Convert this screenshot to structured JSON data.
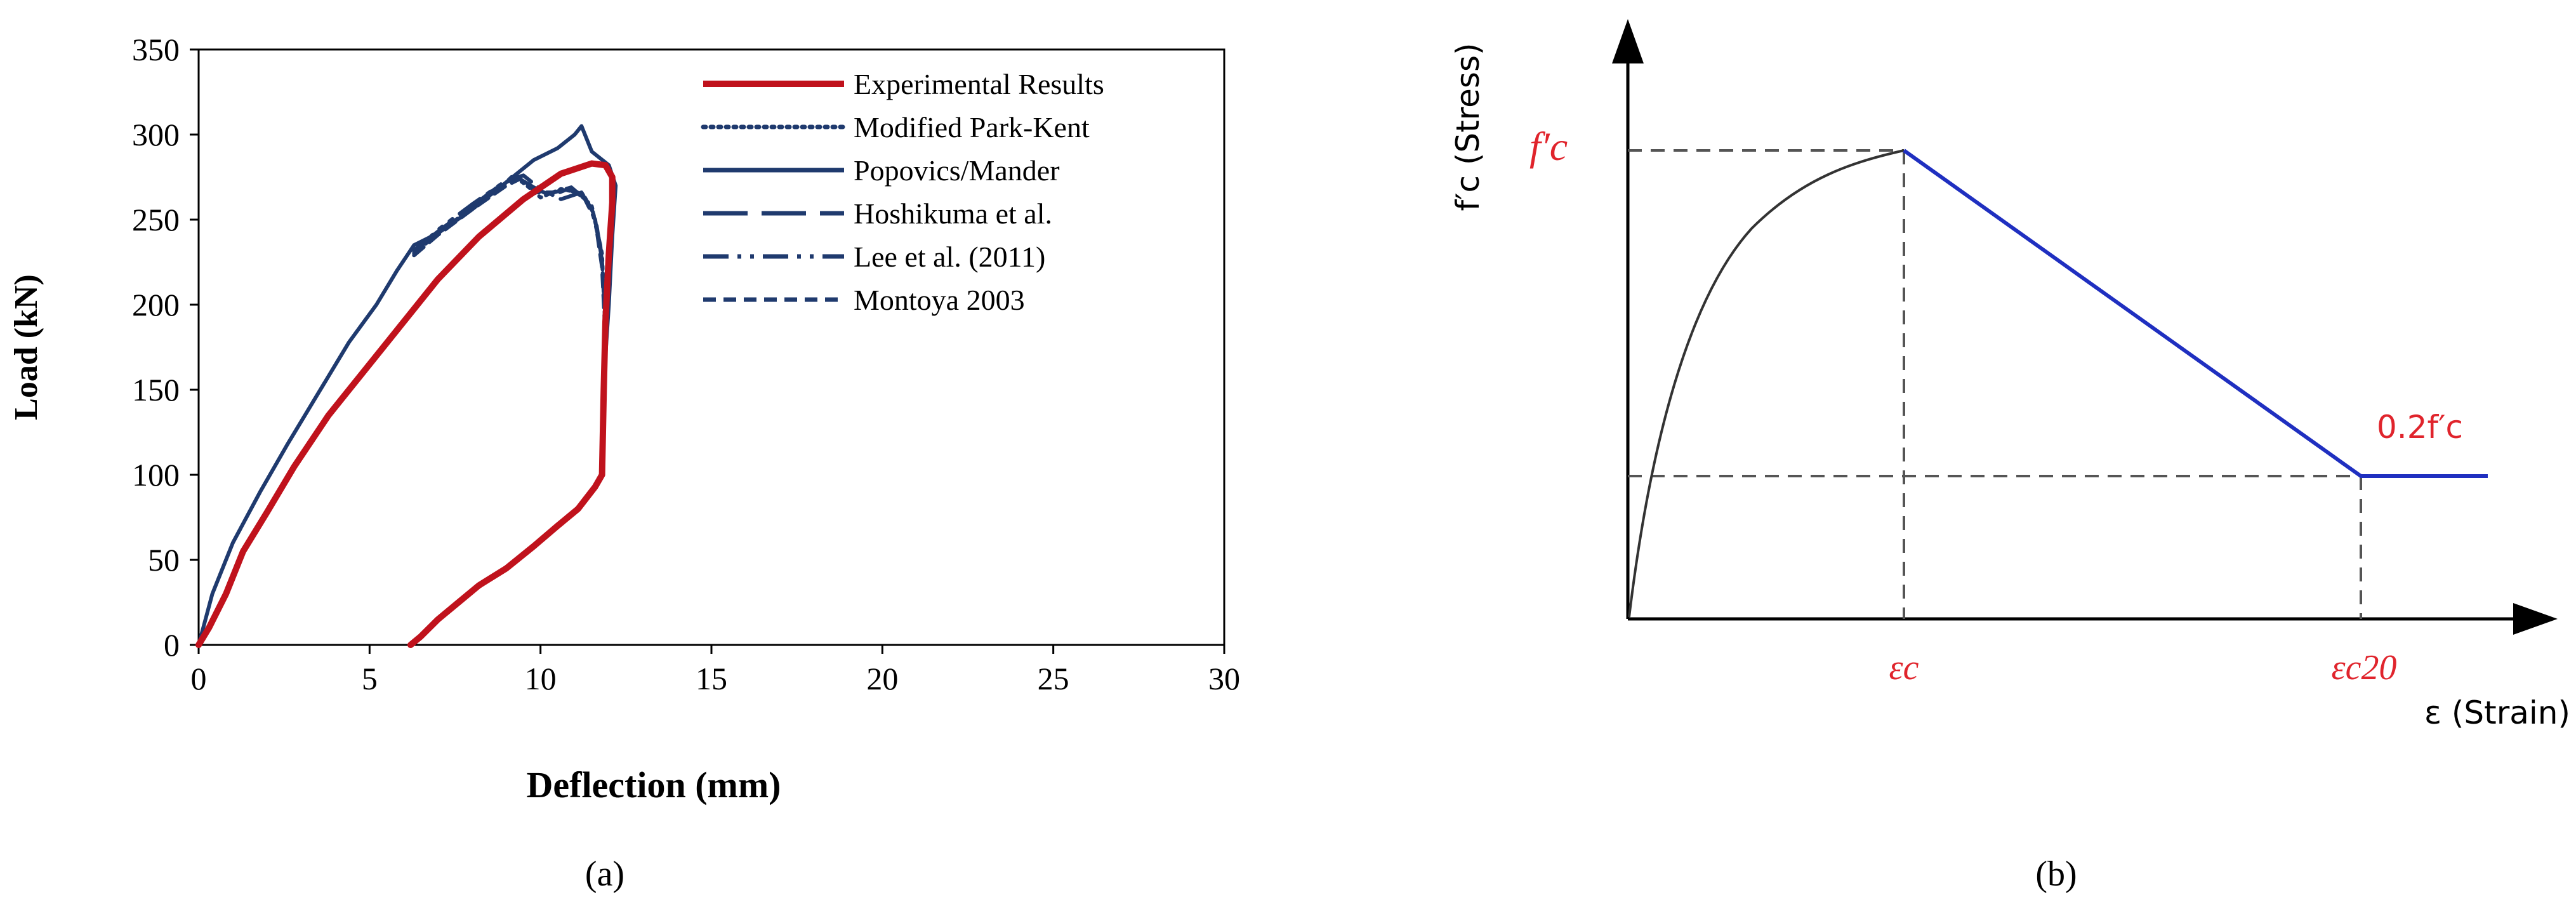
{
  "chart_data": [
    {
      "panel": "(a)",
      "type": "line",
      "xlabel": "Deflection (mm)",
      "ylabel": "Load (kN)",
      "xlim": [
        0,
        30
      ],
      "ylim": [
        0,
        350
      ],
      "xticks": [
        "0",
        "5",
        "10",
        "15",
        "20",
        "25",
        "30"
      ],
      "yticks": [
        "0",
        "50",
        "100",
        "150",
        "200",
        "250",
        "300",
        "350"
      ],
      "xtick_values": [
        0,
        5,
        10,
        15,
        20,
        25,
        30
      ],
      "ytick_values": [
        0,
        50,
        100,
        150,
        200,
        250,
        300,
        350
      ],
      "grid": false,
      "legend_position": "top-right",
      "series": [
        {
          "name": "Experimental Results",
          "color": "#c0121c",
          "style": "solid",
          "points": [
            [
              0,
              0
            ],
            [
              0.3,
              10
            ],
            [
              0.8,
              30
            ],
            [
              1.3,
              55
            ],
            [
              2,
              78
            ],
            [
              2.8,
              105
            ],
            [
              3.8,
              135
            ],
            [
              4.8,
              160
            ],
            [
              5.8,
              185
            ],
            [
              7,
              215
            ],
            [
              8.2,
              240
            ],
            [
              9.5,
              262
            ],
            [
              10.6,
              277
            ],
            [
              11.5,
              283
            ],
            [
              11.9,
              282
            ],
            [
              12.1,
              275
            ],
            [
              12.1,
              260
            ],
            [
              12.0,
              230
            ],
            [
              11.9,
              190
            ],
            [
              11.85,
              150
            ],
            [
              11.8,
              100
            ],
            [
              11.6,
              93
            ],
            [
              11.1,
              80
            ],
            [
              10.5,
              70
            ],
            [
              9.8,
              58
            ],
            [
              9.0,
              45
            ],
            [
              8.2,
              35
            ],
            [
              7.6,
              25
            ],
            [
              7.0,
              15
            ],
            [
              6.5,
              5
            ],
            [
              6.2,
              0
            ]
          ]
        },
        {
          "name": "Modified Park-Kent",
          "color": "#1f3a6e",
          "style": "dotted",
          "points": [
            [
              6.3,
              230
            ],
            [
              7,
              242
            ],
            [
              8,
              257
            ],
            [
              8.8,
              268
            ],
            [
              9.2,
              276
            ],
            [
              9.6,
              270
            ],
            [
              10,
              263
            ],
            [
              10.6,
              268
            ],
            [
              11.1,
              266
            ],
            [
              11.5,
              258
            ],
            [
              11.8,
              230
            ],
            [
              11.85,
              205
            ],
            [
              11.9,
              185
            ]
          ]
        },
        {
          "name": "Popovics/Mander",
          "color": "#1f3a6e",
          "style": "solid",
          "points": [
            [
              0,
              0
            ],
            [
              0.4,
              30
            ],
            [
              1,
              60
            ],
            [
              1.8,
              90
            ],
            [
              2.6,
              118
            ],
            [
              3.5,
              148
            ],
            [
              4.4,
              178
            ],
            [
              5.2,
              200
            ],
            [
              5.8,
              220
            ],
            [
              6.3,
              235
            ],
            [
              7,
              242
            ],
            [
              8,
              256
            ],
            [
              9,
              272
            ],
            [
              9.8,
              285
            ],
            [
              10.5,
              292
            ],
            [
              11,
              300
            ],
            [
              11.2,
              305
            ],
            [
              11.5,
              290
            ],
            [
              12,
              282
            ],
            [
              12.2,
              270
            ],
            [
              12.1,
              240
            ],
            [
              12.0,
              200
            ],
            [
              11.9,
              170
            ]
          ]
        },
        {
          "name": "Hoshikuma et al.",
          "color": "#1f3a6e",
          "style": "dashed-long",
          "points": [
            [
              6.3,
              232
            ],
            [
              7,
              243
            ],
            [
              8,
              258
            ],
            [
              8.8,
              270
            ],
            [
              9.3,
              275
            ],
            [
              9.8,
              269
            ],
            [
              10.3,
              264
            ],
            [
              10.8,
              268
            ],
            [
              11.3,
              263
            ],
            [
              11.6,
              252
            ],
            [
              11.8,
              226
            ],
            [
              11.9,
              190
            ]
          ]
        },
        {
          "name": "Lee et al. (2011)",
          "color": "#1f3a6e",
          "style": "dash-dot",
          "points": [
            [
              6.3,
              231
            ],
            [
              7,
              244
            ],
            [
              8,
              259
            ],
            [
              9,
              273
            ],
            [
              9.5,
              276
            ],
            [
              10,
              268
            ],
            [
              10.6,
              262
            ],
            [
              11.2,
              266
            ],
            [
              11.5,
              256
            ],
            [
              11.75,
              235
            ],
            [
              11.9,
              200
            ]
          ]
        },
        {
          "name": "Montoya 2003",
          "color": "#1f3a6e",
          "style": "dashed",
          "points": [
            [
              6.3,
              229
            ],
            [
              7,
              241
            ],
            [
              8,
              256
            ],
            [
              9,
              270
            ],
            [
              9.4,
              274
            ],
            [
              9.9,
              266
            ],
            [
              10.4,
              266
            ],
            [
              10.9,
              269
            ],
            [
              11.3,
              262
            ],
            [
              11.6,
              250
            ],
            [
              11.8,
              222
            ],
            [
              11.9,
              180
            ]
          ]
        }
      ]
    },
    {
      "panel": "(b)",
      "type": "line",
      "xlabel": "ε (Strain)",
      "ylabel": "f′c (Stress)",
      "xtick_labels": [
        "εc",
        "εc20"
      ],
      "ytick_labels": [
        "f′c",
        "0.2f′c"
      ],
      "series": [
        {
          "name": "ascending",
          "color": "#333333",
          "points": [
            [
              0,
              0
            ],
            [
              0.05,
              0.4
            ],
            [
              0.15,
              0.62
            ],
            [
              0.3,
              0.79
            ],
            [
              0.5,
              0.9
            ],
            [
              0.7,
              0.96
            ],
            [
              1,
              1
            ]
          ]
        },
        {
          "name": "descending",
          "color": "#1f2fc0",
          "points": [
            [
              1,
              1
            ],
            [
              2.8,
              0.3
            ],
            [
              3.5,
              0.3
            ]
          ]
        }
      ]
    }
  ],
  "panel_labels": {
    "a": "(a)",
    "b": "(b)"
  }
}
